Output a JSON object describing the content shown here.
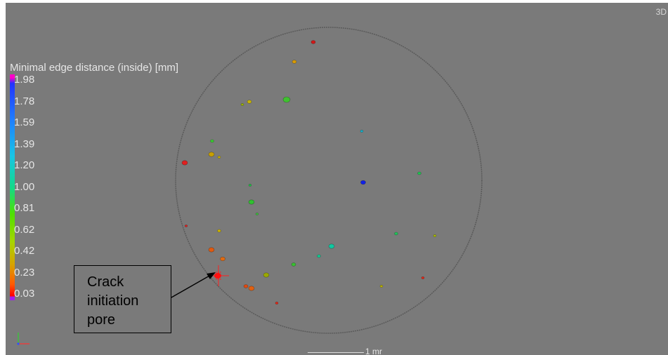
{
  "view_mode": "3D",
  "legend": {
    "title": "Minimal edge distance (inside) [mm]",
    "ticks": [
      "1.98",
      "1.78",
      "1.59",
      "1.39",
      "1.20",
      "1.00",
      "0.81",
      "0.62",
      "0.42",
      "0.23",
      "0.03"
    ]
  },
  "callout": {
    "lines": [
      "Crack",
      "initiation",
      "pore"
    ]
  },
  "scale_bar": {
    "label": "1 mr"
  },
  "colors": {
    "background": "#7a7a7a",
    "boundary": "#5a5a5a",
    "callout_border": "#000000",
    "marker": "#ff2020"
  },
  "pores": [
    {
      "value": 0.05,
      "color": "#d01818"
    },
    {
      "value": 0.4,
      "color": "#d89a00"
    },
    {
      "value": 0.55,
      "color": "#9ab000"
    },
    {
      "value": 0.65,
      "color": "#c8b400"
    },
    {
      "value": 0.95,
      "color": "#38c830"
    },
    {
      "value": 1.5,
      "color": "#18b0c8"
    },
    {
      "value": 0.45,
      "color": "#c8a000"
    },
    {
      "value": 0.48,
      "color": "#c8b000"
    },
    {
      "value": 0.05,
      "color": "#e02020"
    },
    {
      "value": 0.9,
      "color": "#40c030"
    },
    {
      "value": 1.1,
      "color": "#18c840"
    },
    {
      "value": 1.95,
      "color": "#1020e8"
    },
    {
      "value": 1.0,
      "color": "#30c030"
    },
    {
      "value": 0.92,
      "color": "#38c838"
    },
    {
      "value": 1.05,
      "color": "#20c050"
    },
    {
      "value": 0.05,
      "color": "#e02020"
    },
    {
      "value": 0.48,
      "color": "#c8b000"
    },
    {
      "value": 1.05,
      "color": "#20c058"
    },
    {
      "value": 0.62,
      "color": "#a8b800"
    },
    {
      "value": 0.25,
      "color": "#e05a10"
    },
    {
      "value": 0.3,
      "color": "#e06a10"
    },
    {
      "value": 1.3,
      "color": "#10c8a0"
    },
    {
      "value": 1.2,
      "color": "#10c890"
    },
    {
      "value": 0.9,
      "color": "#38c030"
    },
    {
      "value": 0.55,
      "color": "#9aa800"
    },
    {
      "value": 0.03,
      "color": "#ff1010"
    },
    {
      "value": 0.3,
      "color": "#e06010"
    },
    {
      "value": 0.2,
      "color": "#e04a10"
    },
    {
      "value": 0.08,
      "color": "#e02818"
    },
    {
      "value": 0.6,
      "color": "#b8b000"
    },
    {
      "value": 0.08,
      "color": "#e02818"
    }
  ]
}
